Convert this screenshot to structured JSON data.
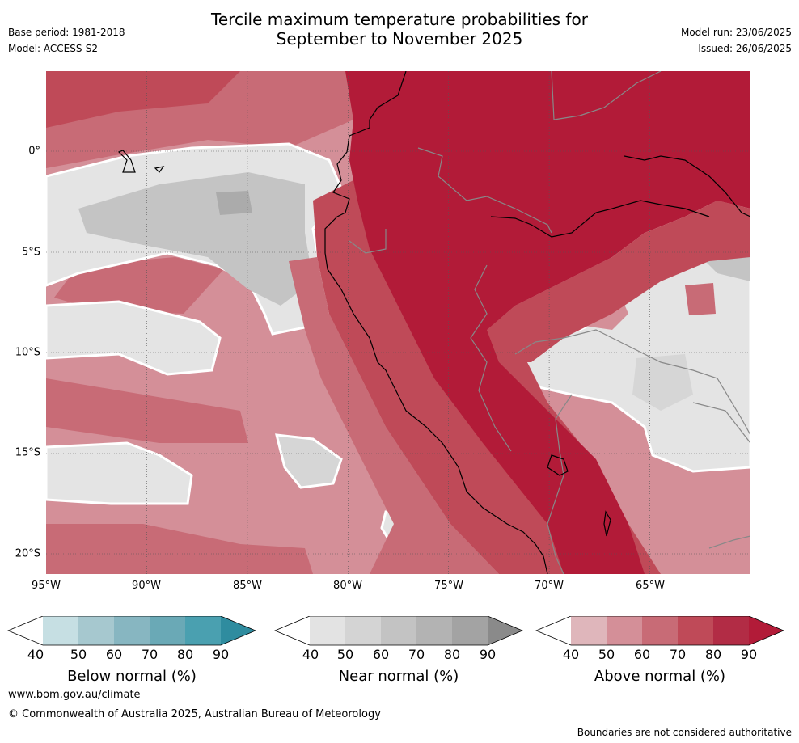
{
  "header": {
    "title_line1": "Tercile maximum temperature probabilities for",
    "title_line2": "September to November 2025",
    "base_period": "Base period: 1981-2018",
    "model": "Model: ACCESS-S2",
    "model_run": "Model run: 23/06/2025",
    "issued": "Issued: 26/06/2025"
  },
  "map": {
    "lat_labels": [
      "0°",
      "5°S",
      "10°S",
      "15°S",
      "20°S"
    ],
    "lon_labels": [
      "95°W",
      "90°W",
      "85°W",
      "80°W",
      "75°W",
      "70°W",
      "65°W"
    ],
    "colors": {
      "ocean_bg": "#d48f98",
      "above_50": "#dfb6bb",
      "above_60": "#d48f98",
      "above_70": "#c86b76",
      "above_80": "#bf4a58",
      "above_90": "#b21b38",
      "near_40": "#e4e4e4",
      "near_50": "#d6d6d6",
      "near_60": "#c4c4c4",
      "near_70": "#ababab",
      "boundary": "#ffffff"
    }
  },
  "colorbars": [
    {
      "name": "below",
      "title": "Below normal (%)",
      "ticks": [
        "40",
        "50",
        "60",
        "70",
        "80",
        "90"
      ],
      "colors": [
        "#ffffff",
        "#c6dfe3",
        "#a6c8cf",
        "#87b6c1",
        "#6aa9b6",
        "#4aa0b0",
        "#2f8c9f"
      ]
    },
    {
      "name": "near",
      "title": "Near normal (%)",
      "ticks": [
        "40",
        "50",
        "60",
        "70",
        "80",
        "90"
      ],
      "colors": [
        "#ffffff",
        "#e3e3e3",
        "#d4d4d4",
        "#c3c3c3",
        "#b3b3b3",
        "#a3a3a3",
        "#8a8a8a"
      ]
    },
    {
      "name": "above",
      "title": "Above normal (%)",
      "ticks": [
        "40",
        "50",
        "60",
        "70",
        "80",
        "90"
      ],
      "colors": [
        "#ffffff",
        "#dfb6bb",
        "#d48f98",
        "#c86b76",
        "#bf4a58",
        "#b22c45",
        "#b21b38"
      ]
    }
  ],
  "footer": {
    "url": "www.bom.gov.au/climate",
    "copyright": "© Commonwealth of Australia 2025, Australian Bureau of Meteorology",
    "disclaimer": "Boundaries are not considered authoritative"
  }
}
